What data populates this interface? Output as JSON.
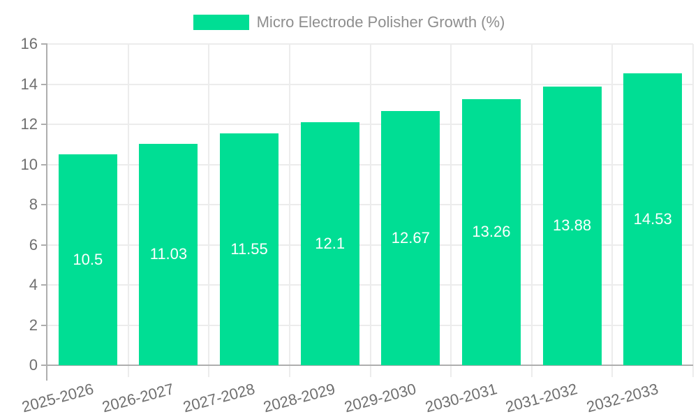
{
  "legend": {
    "label": "Micro Electrode Polisher Growth (%)"
  },
  "chart_data": {
    "type": "bar",
    "title": "Micro Electrode Polisher Growth (%)",
    "categories": [
      "2025-2026",
      "2026-2027",
      "2027-2028",
      "2028-2029",
      "2029-2030",
      "2030-2031",
      "2031-2032",
      "2032-2033"
    ],
    "series": [
      {
        "name": "Micro Electrode Polisher Growth (%)",
        "values": [
          10.5,
          11.03,
          11.55,
          12.1,
          12.67,
          13.26,
          13.88,
          14.53
        ]
      }
    ],
    "value_labels": [
      "10.5",
      "11.03",
      "11.55",
      "12.1",
      "12.67",
      "13.26",
      "13.88",
      "14.53"
    ],
    "xlabel": "",
    "ylabel": "",
    "ylim": [
      0,
      16
    ],
    "yticks": [
      0,
      2,
      4,
      6,
      8,
      10,
      12,
      14,
      16
    ],
    "ytick_labels": [
      "0",
      "2",
      "4",
      "6",
      "8",
      "10",
      "12",
      "14",
      "16"
    ],
    "grid": true,
    "legend_position": "top",
    "x_label_rotation_deg": -15
  },
  "colors": {
    "bar": "#00DE94",
    "grid": "#ececec",
    "axis": "#aeaeae",
    "axis_label_text": "#6f6f6f",
    "legend_text": "#8e8e8e",
    "value_label_text": "#ffffff",
    "background": "#ffffff"
  }
}
